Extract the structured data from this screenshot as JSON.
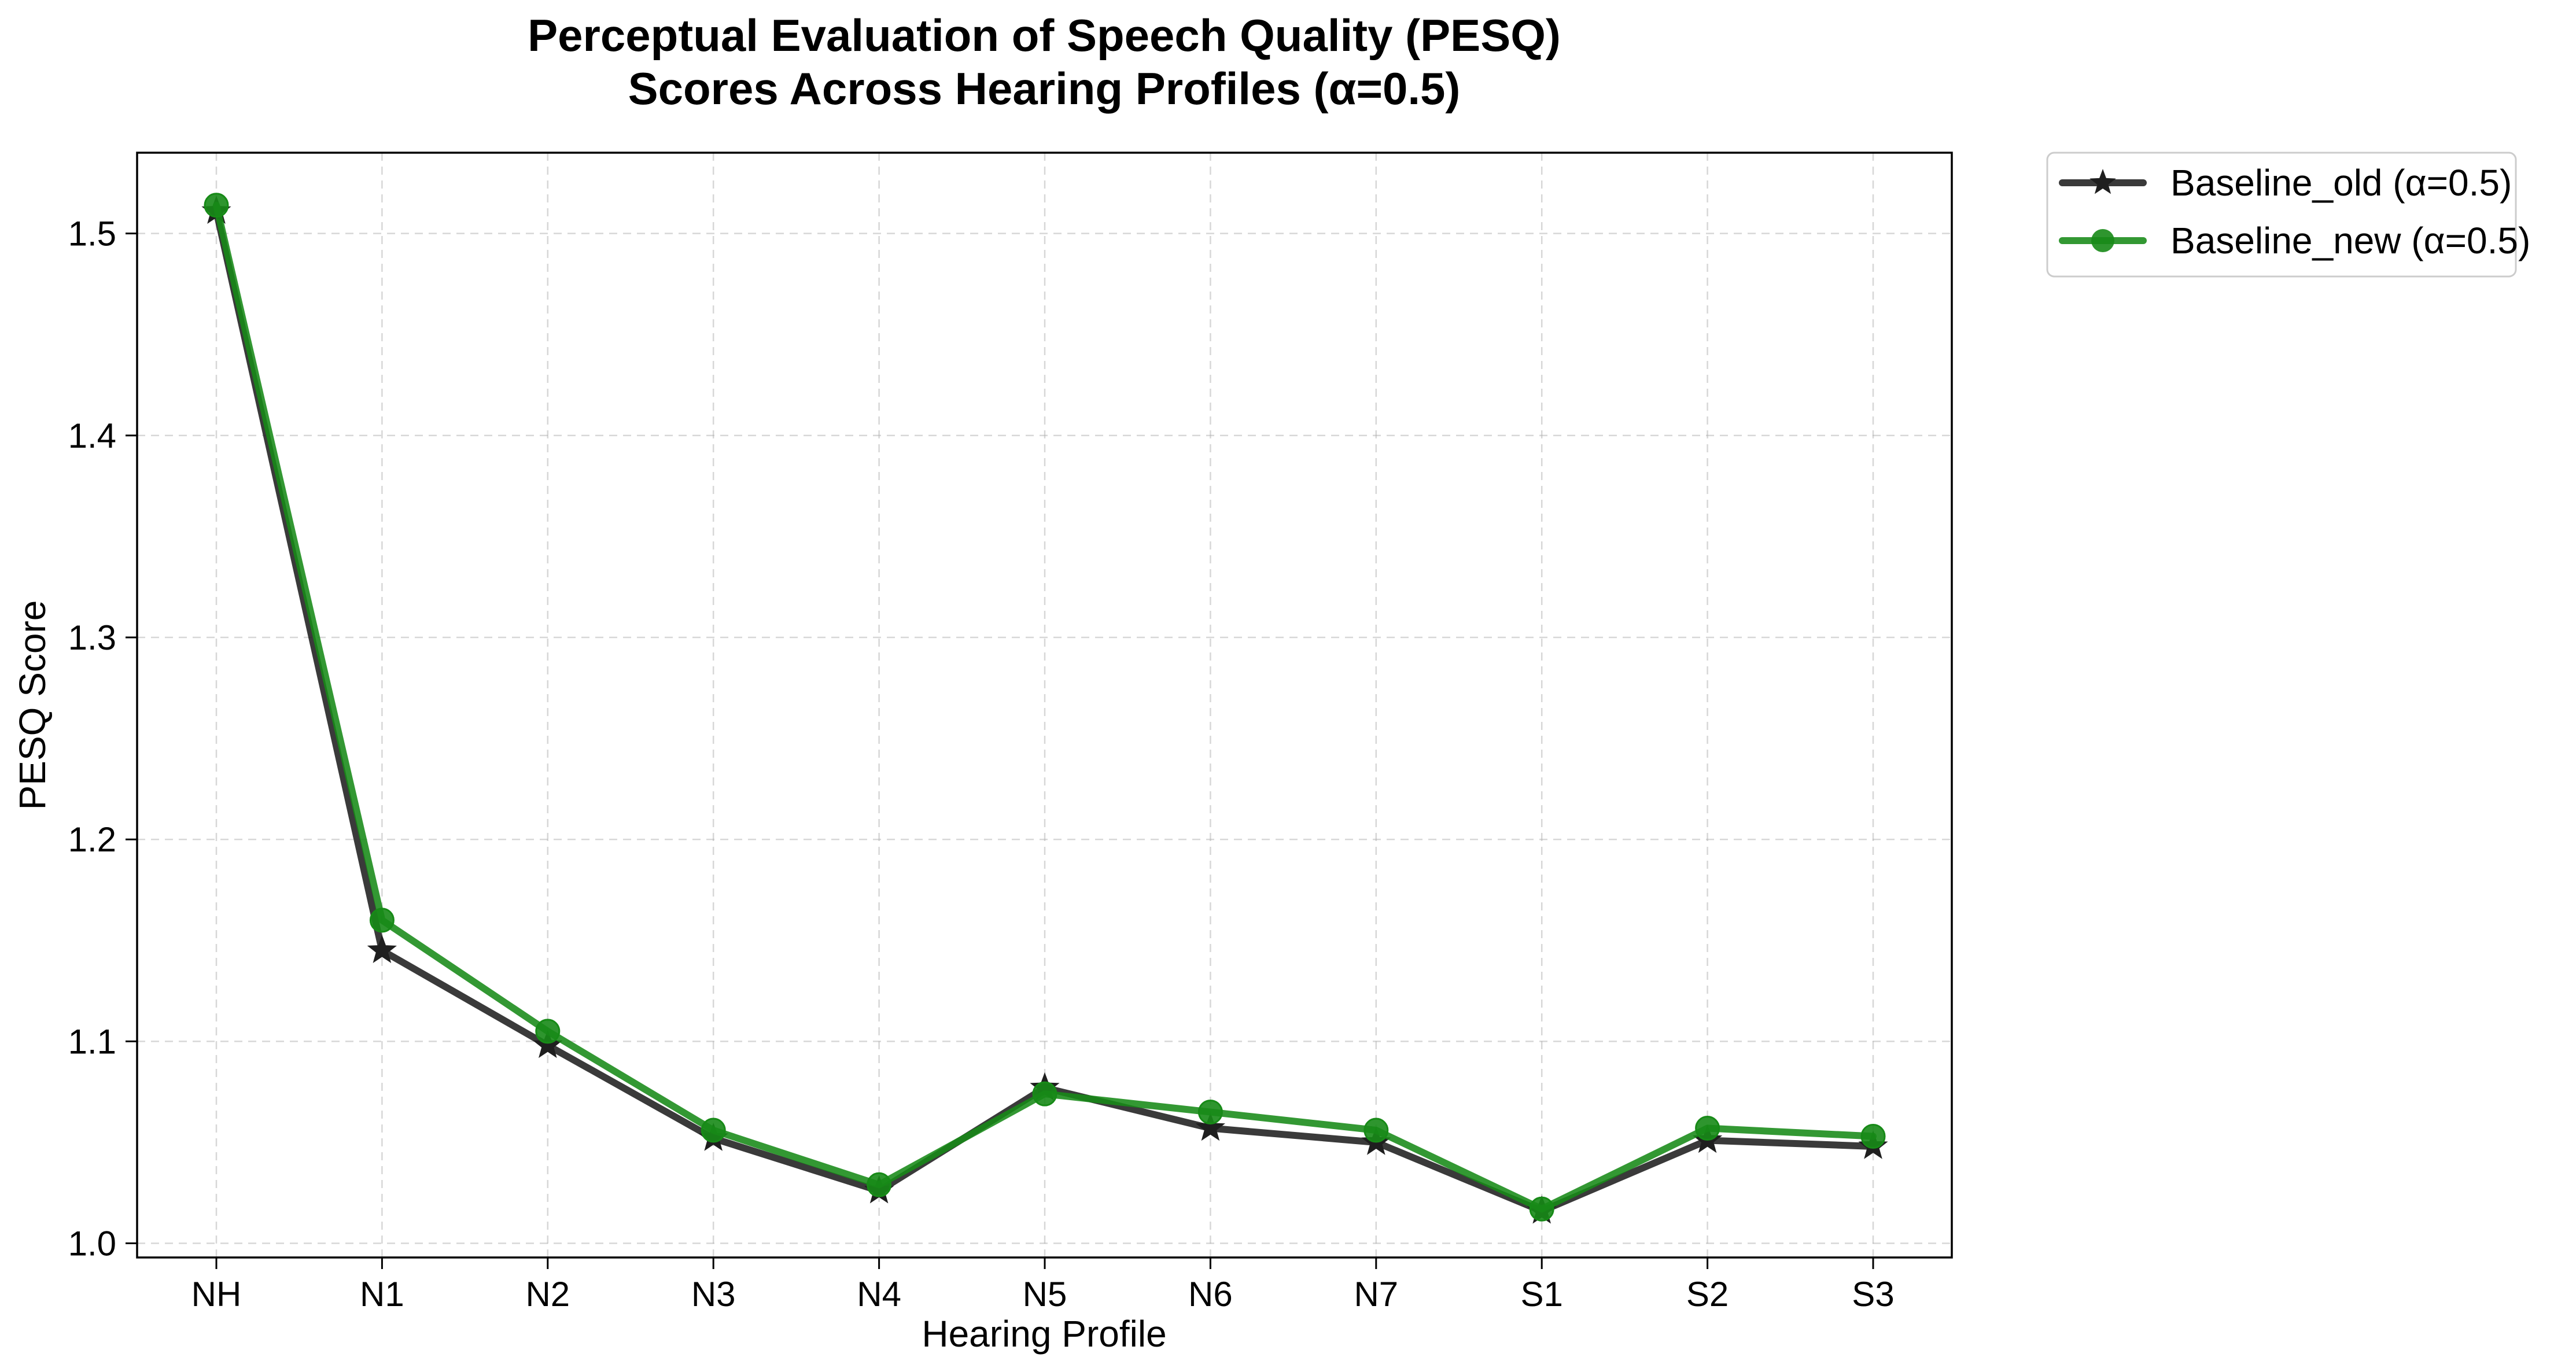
{
  "chart_data": {
    "type": "line",
    "title_lines": [
      "Perceptual Evaluation of Speech Quality (PESQ)",
      "Scores Across Hearing Profiles (α=0.5)"
    ],
    "xlabel": "Hearing Profile",
    "ylabel": "PESQ Score",
    "categories": [
      "NH",
      "N1",
      "N2",
      "N3",
      "N4",
      "N5",
      "N6",
      "N7",
      "S1",
      "S2",
      "S3"
    ],
    "ylim": [
      0.993,
      1.54
    ],
    "yticks": [
      1.0,
      1.1,
      1.2,
      1.3,
      1.4,
      1.5
    ],
    "ytick_labels": [
      "1.0",
      "1.1",
      "1.2",
      "1.3",
      "1.4",
      "1.5"
    ],
    "grid": true,
    "legend_position": "outside-top-right",
    "series": [
      {
        "name": "Baseline_old (α=0.5)",
        "color": "#1f1f1f",
        "marker": "star",
        "values": [
          1.511,
          1.145,
          1.098,
          1.052,
          1.026,
          1.077,
          1.057,
          1.05,
          1.016,
          1.051,
          1.048
        ]
      },
      {
        "name": "Baseline_new (α=0.5)",
        "color": "#178a17",
        "marker": "circle",
        "values": [
          1.514,
          1.16,
          1.105,
          1.056,
          1.029,
          1.074,
          1.065,
          1.056,
          1.017,
          1.057,
          1.053
        ]
      }
    ]
  }
}
